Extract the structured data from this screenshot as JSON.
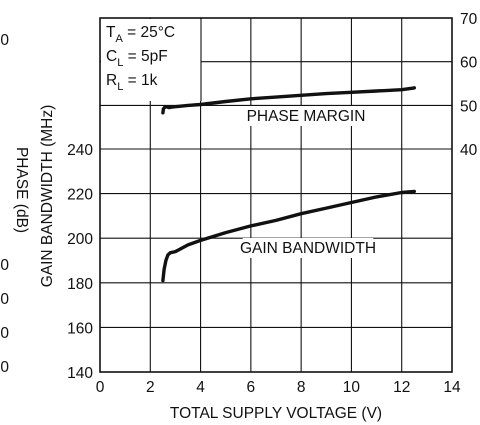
{
  "chart_data": {
    "type": "line",
    "xlabel": "TOTAL SUPPLY VOLTAGE (V)",
    "ylabel_left": "GAIN BANDWIDTH (MHz)",
    "ylabel_left_outer": "PHASE (dB)",
    "xlim": [
      0,
      14
    ],
    "ylim_left": [
      140,
      260
    ],
    "ylim_right": [
      40,
      70
    ],
    "x_ticks": [
      "0",
      "2",
      "4",
      "6",
      "8",
      "10",
      "12",
      "14"
    ],
    "y_ticks_left": [
      "140",
      "160",
      "180",
      "200",
      "220",
      "240"
    ],
    "y_ticks_right": [
      "40",
      "50",
      "60",
      "70"
    ],
    "clipped_left_labels": [
      "0",
      "0",
      "0",
      "0",
      "0"
    ],
    "conditions": [
      {
        "main": "T",
        "sub": "A",
        "rest": " = 25°C"
      },
      {
        "main": "C",
        "sub": "L",
        "rest": " = 5pF"
      },
      {
        "main": "R",
        "sub": "L",
        "rest": " = 1k"
      }
    ],
    "series": [
      {
        "name": "PHASE MARGIN",
        "axis": "right",
        "x": [
          2.5,
          2.52,
          2.58,
          2.65,
          2.75,
          2.85,
          3.0,
          3.5,
          4,
          5,
          6,
          7,
          8,
          9,
          10,
          11,
          12,
          12.5
        ],
        "y": [
          48.3,
          49.2,
          49.6,
          49.7,
          49.5,
          49.6,
          49.7,
          50.0,
          50.2,
          50.9,
          51.5,
          51.9,
          52.3,
          52.7,
          53.0,
          53.3,
          53.6,
          54.0
        ]
      },
      {
        "name": "GAIN BANDWIDTH",
        "axis": "left",
        "x": [
          2.5,
          2.55,
          2.62,
          2.7,
          2.8,
          3.0,
          3.5,
          4,
          5,
          6,
          7,
          8,
          9,
          10,
          11,
          12,
          12.5
        ],
        "y": [
          181,
          186,
          190,
          192.5,
          193.5,
          194,
          197,
          199,
          202.5,
          205.5,
          208,
          211,
          213.5,
          216,
          218.5,
          220.5,
          221
        ]
      }
    ]
  }
}
